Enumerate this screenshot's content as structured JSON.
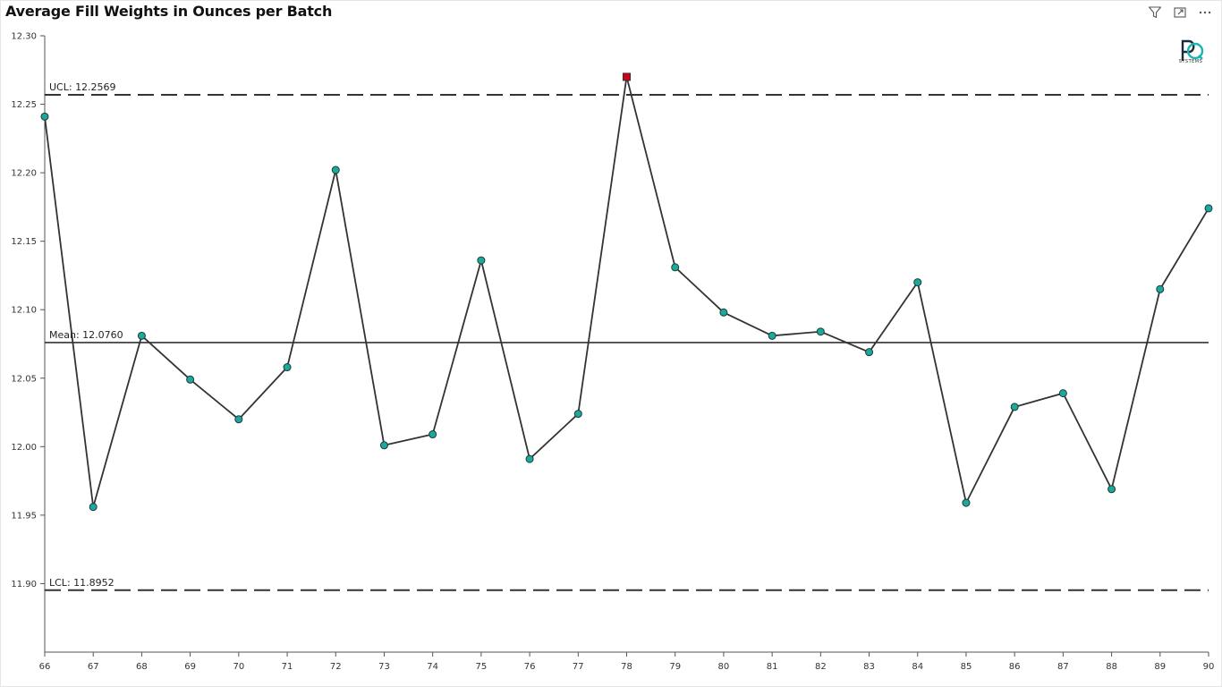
{
  "title": "Average Fill Weights in Ounces per Batch",
  "toolbar": {
    "filter_icon": "filter-icon",
    "focus_icon": "focus-mode-icon",
    "more_icon": "more-options-icon"
  },
  "logo": {
    "icon": "pq-systems-logo",
    "text": "SYSTEMS"
  },
  "colors": {
    "point_fill": "#1aa99a",
    "point_stroke": "#1f3a3a",
    "out_of_control_fill": "#d0021b",
    "line": "#333333",
    "reference_line": "#333333"
  },
  "chart_data": {
    "type": "line",
    "title": "Average Fill Weights in Ounces per Batch",
    "xlabel": "",
    "ylabel": "",
    "x": [
      66,
      67,
      68,
      69,
      70,
      71,
      72,
      73,
      74,
      75,
      76,
      77,
      78,
      79,
      80,
      81,
      82,
      83,
      84,
      85,
      86,
      87,
      88,
      89,
      90
    ],
    "series": [
      {
        "values": [
          12.241,
          11.956,
          12.081,
          12.049,
          12.02,
          12.058,
          12.202,
          12.001,
          12.009,
          12.136,
          11.991,
          12.024,
          12.27,
          12.131,
          12.098,
          12.081,
          12.084,
          12.069,
          12.12,
          11.959,
          12.029,
          12.039,
          11.969,
          12.115,
          12.174
        ],
        "out_of_control": [
          78
        ]
      }
    ],
    "ylim": [
      11.85,
      12.3
    ],
    "yticks": [
      "11.90",
      "11.95",
      "12.00",
      "12.05",
      "12.10",
      "12.15",
      "12.20",
      "12.25",
      "12.30"
    ],
    "reference_lines": [
      {
        "key": "ucl",
        "label": "UCL: 12.2569",
        "value": 12.2569,
        "style": "dashed"
      },
      {
        "key": "mean",
        "label": "Mean: 12.0760",
        "value": 12.076,
        "style": "solid"
      },
      {
        "key": "lcl",
        "label": "LCL: 11.8952",
        "value": 11.8952,
        "style": "dashed"
      }
    ],
    "grid": false,
    "legend": "none"
  }
}
